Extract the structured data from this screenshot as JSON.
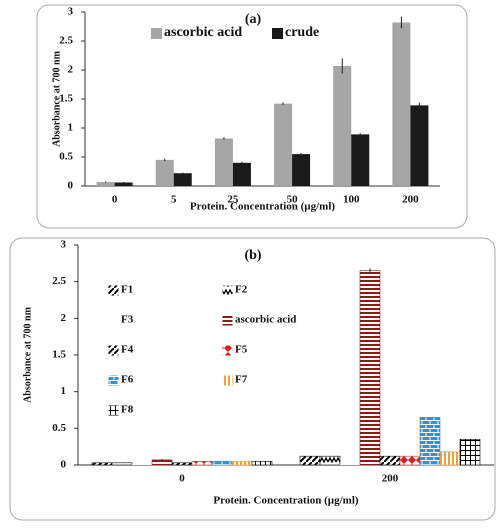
{
  "chart_data": [
    {
      "type": "bar",
      "title": "(a)",
      "x_label": "Protein. Concentration (µg/ml)",
      "y_label": "Absorbance at 700 nm",
      "categories": [
        "0",
        "5",
        "25",
        "50",
        "100",
        "200"
      ],
      "series": [
        {
          "name": "ascorbic acid",
          "color": "#a6a6a6",
          "pattern": "solid",
          "values": [
            0.07,
            0.45,
            0.82,
            1.42,
            2.07,
            2.82
          ],
          "errors": [
            0.01,
            0.02,
            0.02,
            0.02,
            0.13,
            0.1
          ]
        },
        {
          "name": "crude",
          "color": "#1a1a1a",
          "pattern": "solid",
          "values": [
            0.06,
            0.22,
            0.4,
            0.55,
            0.89,
            1.39
          ],
          "errors": [
            0.01,
            0.01,
            0.02,
            0.02,
            0.02,
            0.05
          ]
        }
      ],
      "ylim": [
        0,
        3
      ],
      "yticks": [
        0,
        0.5,
        1,
        1.5,
        2,
        2.5,
        3
      ],
      "grid": false,
      "legend": "top"
    },
    {
      "type": "bar",
      "title": "(b)",
      "x_label": "Protein. Concentration (µg/ml)",
      "y_label": "Absorbance at 700 nm",
      "categories": [
        "0",
        "200"
      ],
      "series": [
        {
          "name": "F1",
          "color": "#000000",
          "pattern": "diag",
          "values": [
            0.03,
            0.12
          ]
        },
        {
          "name": "F2",
          "color": "#000000",
          "pattern": "zigzag",
          "values": [
            0.03,
            0.12
          ]
        },
        {
          "name": "F3",
          "color": "#ffffff",
          "pattern": "solid",
          "values": [
            0.01,
            0.01
          ]
        },
        {
          "name": "ascorbic acid",
          "color": "#8b1a1a",
          "pattern": "hlines",
          "values": [
            0.07,
            2.65
          ],
          "errors": [
            0.01,
            0.03
          ]
        },
        {
          "name": "F4",
          "color": "#000000",
          "pattern": "diag",
          "values": [
            0.03,
            0.12
          ]
        },
        {
          "name": "F5",
          "color": "#d42020",
          "pattern": "diamond",
          "values": [
            0.05,
            0.12
          ]
        },
        {
          "name": "F6",
          "color": "#3a8fd0",
          "pattern": "brick",
          "values": [
            0.05,
            0.65
          ]
        },
        {
          "name": "F7",
          "color": "#f0a030",
          "pattern": "vlines",
          "values": [
            0.05,
            0.18
          ]
        },
        {
          "name": "F8",
          "color": "#000000",
          "pattern": "grid",
          "values": [
            0.05,
            0.35
          ]
        }
      ],
      "ylim": [
        0,
        3
      ],
      "yticks": [
        0,
        0.5,
        1,
        1.5,
        2,
        2.5,
        3
      ],
      "grid": false,
      "legend": "left"
    }
  ]
}
